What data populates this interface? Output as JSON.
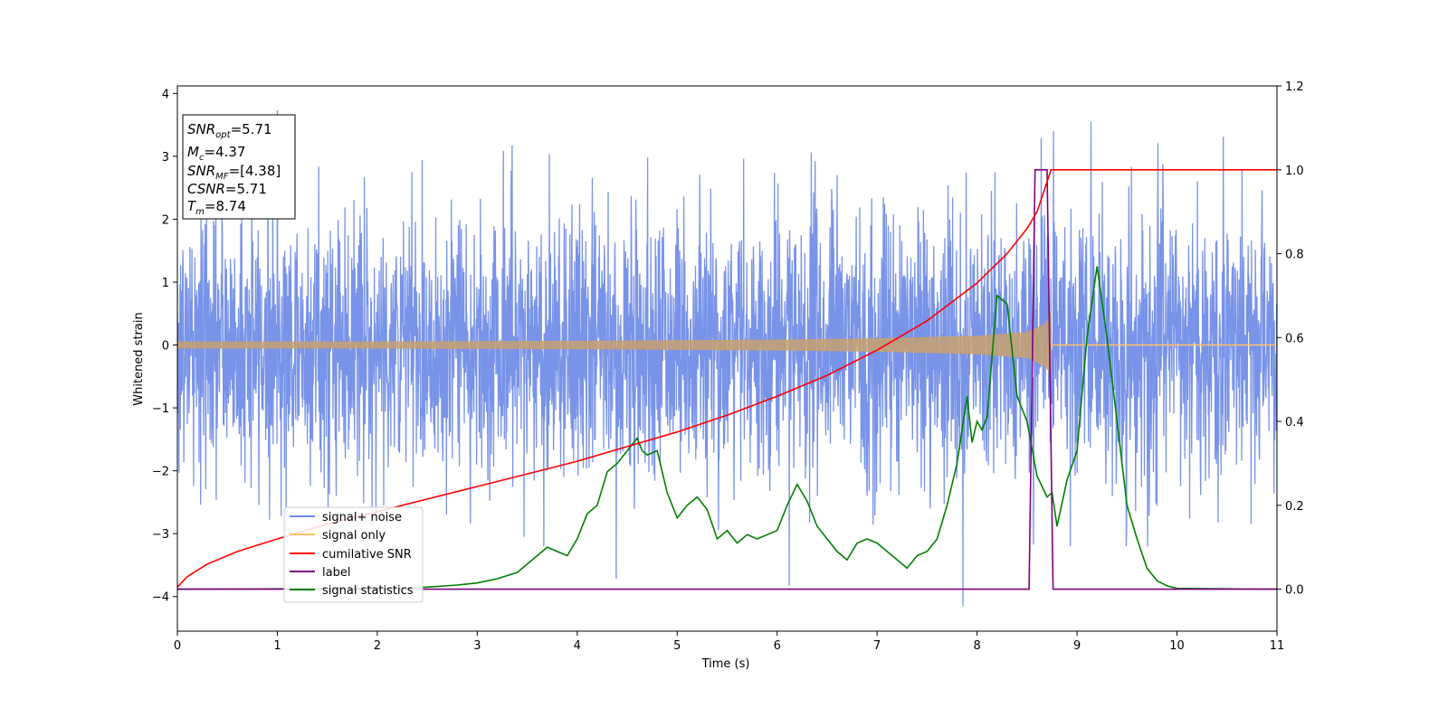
{
  "chart_data": {
    "type": "line",
    "xlabel": "Time (s)",
    "ylabel": "Whitened strain",
    "xlim": [
      0,
      11
    ],
    "ylim": [
      -4.55,
      4.12
    ],
    "y2lim": [
      -0.1,
      1.2
    ],
    "xticks": [
      "0",
      "1",
      "2",
      "3",
      "4",
      "5",
      "6",
      "7",
      "8",
      "9",
      "10",
      "11"
    ],
    "yticks": [
      "−4",
      "−3",
      "−2",
      "−1",
      "0",
      "1",
      "2",
      "3",
      "4"
    ],
    "y2ticks": [
      "0.0",
      "0.2",
      "0.4",
      "0.6",
      "0.8",
      "1.0",
      "1.2"
    ],
    "legend_position": "lower-left",
    "info_box": {
      "snr_opt": "5.71",
      "mc": "4.37",
      "snr_mf": "[4.38]",
      "csnr": "5.71",
      "tm": "8.74"
    },
    "series": [
      {
        "name": "signal+ noise",
        "color": "#6d8ae6",
        "axis": "left",
        "description_range": [
          -4.15,
          3.75
        ],
        "peaks": [
          [
            1.0,
            3.73
          ],
          [
            7.86,
            -4.15
          ],
          [
            9.14,
            3.55
          ],
          [
            6.12,
            -3.83
          ],
          [
            4.39,
            -3.72
          ]
        ]
      },
      {
        "name": "signal only",
        "color": "#ffc069",
        "axis": "left",
        "envelope": {
          "t": [
            0,
            2,
            4,
            6,
            7,
            8,
            8.5,
            8.7,
            8.74
          ],
          "amp": [
            0.05,
            0.05,
            0.06,
            0.08,
            0.1,
            0.14,
            0.2,
            0.35,
            0.55
          ]
        },
        "t_merge": 8.74
      },
      {
        "name": "cumilative SNR",
        "color": "#ff0000",
        "axis": "right",
        "x": [
          0,
          0.1,
          0.3,
          0.6,
          1,
          1.5,
          2,
          2.5,
          3,
          3.5,
          4,
          4.5,
          5,
          5.5,
          6,
          6.5,
          7,
          7.5,
          8,
          8.3,
          8.5,
          8.6,
          8.74,
          11
        ],
        "y": [
          0.005,
          0.03,
          0.06,
          0.09,
          0.12,
          0.155,
          0.185,
          0.215,
          0.245,
          0.275,
          0.305,
          0.34,
          0.375,
          0.415,
          0.46,
          0.51,
          0.57,
          0.64,
          0.73,
          0.8,
          0.86,
          0.9,
          1.0,
          1.0
        ]
      },
      {
        "name": "label",
        "color": "#800080",
        "axis": "right",
        "x": [
          0,
          8.52,
          8.58,
          8.7,
          8.76,
          11
        ],
        "y": [
          0,
          0,
          1,
          1,
          0,
          0
        ]
      },
      {
        "name": "signal statistics",
        "color": "#008000",
        "axis": "right",
        "x": [
          0,
          1,
          2,
          2.5,
          2.8,
          3.0,
          3.2,
          3.4,
          3.5,
          3.6,
          3.7,
          3.8,
          3.9,
          4.0,
          4.1,
          4.2,
          4.3,
          4.4,
          4.5,
          4.6,
          4.65,
          4.7,
          4.8,
          4.9,
          5.0,
          5.1,
          5.2,
          5.3,
          5.4,
          5.5,
          5.6,
          5.7,
          5.8,
          5.9,
          6.0,
          6.1,
          6.2,
          6.3,
          6.4,
          6.5,
          6.6,
          6.7,
          6.8,
          6.9,
          7.0,
          7.1,
          7.2,
          7.3,
          7.4,
          7.5,
          7.6,
          7.7,
          7.8,
          7.9,
          7.95,
          8.0,
          8.05,
          8.1,
          8.2,
          8.3,
          8.4,
          8.5,
          8.6,
          8.7,
          8.75,
          8.8,
          8.9,
          9.0,
          9.1,
          9.2,
          9.3,
          9.4,
          9.5,
          9.6,
          9.7,
          9.8,
          9.9,
          10.0,
          11
        ],
        "y": [
          0.0,
          0.001,
          0.002,
          0.005,
          0.01,
          0.015,
          0.025,
          0.04,
          0.06,
          0.08,
          0.1,
          0.09,
          0.08,
          0.12,
          0.18,
          0.2,
          0.28,
          0.3,
          0.33,
          0.36,
          0.33,
          0.32,
          0.33,
          0.23,
          0.17,
          0.2,
          0.22,
          0.19,
          0.12,
          0.14,
          0.11,
          0.13,
          0.12,
          0.13,
          0.14,
          0.2,
          0.25,
          0.21,
          0.15,
          0.12,
          0.09,
          0.07,
          0.11,
          0.12,
          0.11,
          0.09,
          0.07,
          0.05,
          0.08,
          0.09,
          0.12,
          0.2,
          0.3,
          0.46,
          0.35,
          0.4,
          0.38,
          0.41,
          0.7,
          0.68,
          0.46,
          0.4,
          0.27,
          0.22,
          0.23,
          0.15,
          0.26,
          0.33,
          0.6,
          0.77,
          0.6,
          0.4,
          0.2,
          0.12,
          0.05,
          0.02,
          0.008,
          0.002,
          0.0
        ]
      }
    ]
  }
}
